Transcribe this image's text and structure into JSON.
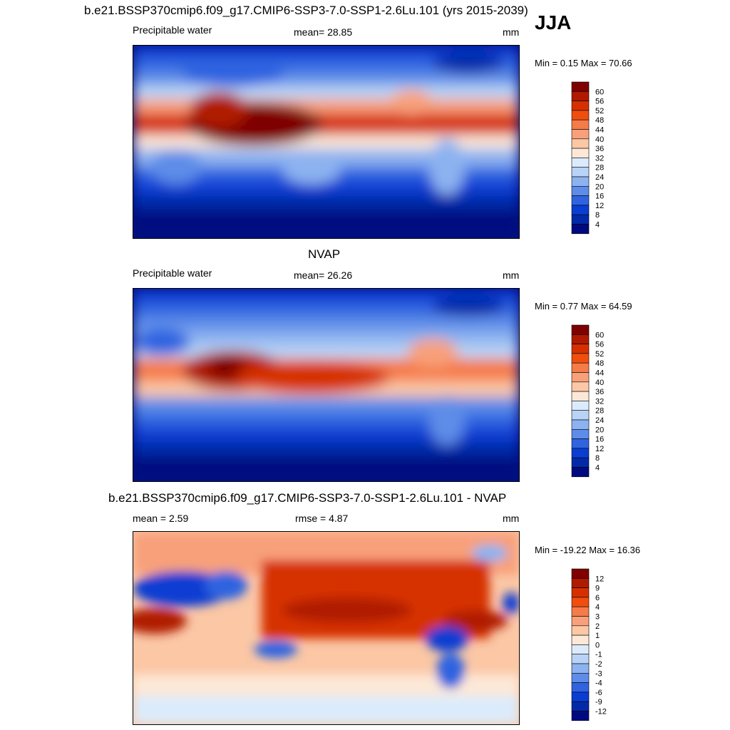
{
  "title": "b.e21.BSSP370cmip6.f09_g17.CMIP6-SSP3-7.0-SSP1-2.6Lu.101 (yrs 2015-2039)",
  "season": "JJA",
  "panels": [
    {
      "title": "",
      "left_label": "Precipitable water",
      "center_label": "mean=  28.85",
      "units": "mm",
      "minmax": "Min =   0.15 Max =  70.66",
      "colorbar": {
        "labels": [
          "60",
          "56",
          "52",
          "48",
          "44",
          "40",
          "36",
          "32",
          "28",
          "24",
          "20",
          "16",
          "12",
          "8",
          "4"
        ],
        "colors": [
          "#7f0000",
          "#b01a00",
          "#d63000",
          "#f04e0e",
          "#f57b48",
          "#f8a07a",
          "#fbc7a5",
          "#fde8d7",
          "#dcebfb",
          "#b8d3f6",
          "#8cb2f0",
          "#5d8de8",
          "#2f63e0",
          "#0a3dd2",
          "#022aa8",
          "#000a80"
        ]
      }
    },
    {
      "title": "NVAP",
      "left_label": "Precipitable water",
      "center_label": "mean=  26.26",
      "units": "mm",
      "minmax": "Min =   0.77 Max =  64.59",
      "colorbar": {
        "labels": [
          "60",
          "56",
          "52",
          "48",
          "44",
          "40",
          "36",
          "32",
          "28",
          "24",
          "20",
          "16",
          "12",
          "8",
          "4"
        ],
        "colors": [
          "#7f0000",
          "#b01a00",
          "#d63000",
          "#f04e0e",
          "#f57b48",
          "#f8a07a",
          "#fbc7a5",
          "#fde8d7",
          "#dcebfb",
          "#b8d3f6",
          "#8cb2f0",
          "#5d8de8",
          "#2f63e0",
          "#0a3dd2",
          "#022aa8",
          "#000a80"
        ]
      }
    },
    {
      "title": "b.e21.BSSP370cmip6.f09_g17.CMIP6-SSP3-7.0-SSP1-2.6Lu.101 - NVAP",
      "left_label": "mean =   2.59",
      "center_label": "rmse =   4.87",
      "units": "mm",
      "minmax": "Min = -19.22 Max =  16.36",
      "colorbar": {
        "labels": [
          "12",
          "9",
          "6",
          "4",
          "3",
          "2",
          "1",
          "0",
          "-1",
          "-2",
          "-3",
          "-4",
          "-6",
          "-9",
          "-12"
        ],
        "colors": [
          "#7f0000",
          "#b01a00",
          "#d63000",
          "#f04e0e",
          "#f57b48",
          "#f8a07a",
          "#fbc7a5",
          "#fde8d7",
          "#dcebfb",
          "#b8d3f6",
          "#8cb2f0",
          "#5d8de8",
          "#2f63e0",
          "#0a3dd2",
          "#022aa8",
          "#000a80"
        ]
      }
    }
  ]
}
